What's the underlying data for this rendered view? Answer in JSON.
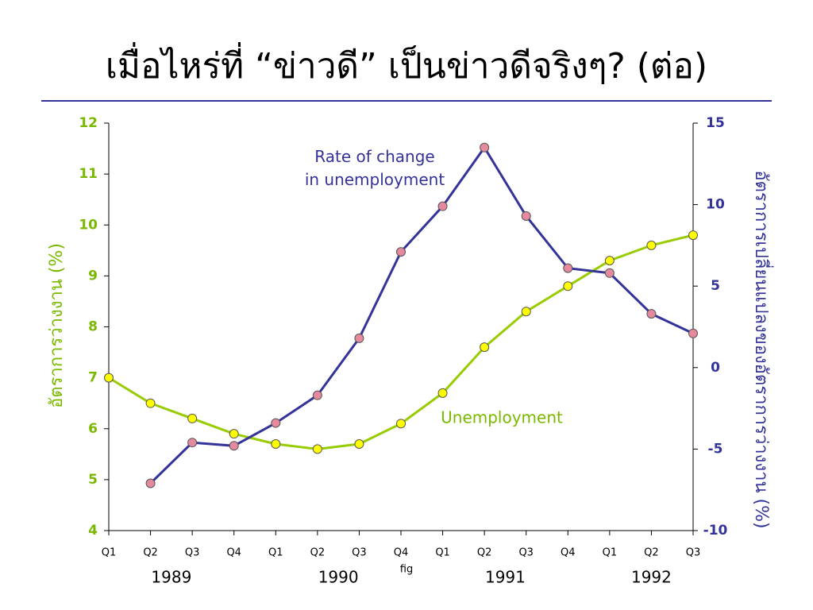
{
  "chart_data": {
    "type": "line",
    "title": "เมื่อไหร่ที่ “ข่าวดี” เป็นข่าวดีจริงๆ? (ต่อ)",
    "categories": [
      "Q1",
      "Q2",
      "Q3",
      "Q4",
      "Q1",
      "Q2",
      "Q3",
      "Q4",
      "Q1",
      "Q2",
      "Q3",
      "Q4",
      "Q1",
      "Q2",
      "Q3"
    ],
    "years": [
      "1989",
      "1990",
      "1991",
      "1992"
    ],
    "caption": "fig",
    "y_label": "อัตราการว่างงาน (%)",
    "y2_label": "อัตราการเปลี่ยนแปลงของอัตราการว่างงาน (%)",
    "ylim": [
      4,
      12
    ],
    "yticks": [
      4,
      5,
      6,
      7,
      8,
      9,
      10,
      11,
      12
    ],
    "y2lim": [
      -10,
      15
    ],
    "y2ticks": [
      -10,
      -5,
      0,
      5,
      10,
      15
    ],
    "series": [
      {
        "name": "Unemployment",
        "color": "#99cc00",
        "marker_color": "#ffff00",
        "values": [
          7.0,
          6.5,
          6.2,
          5.9,
          5.7,
          5.6,
          5.7,
          6.1,
          6.7,
          7.6,
          8.3,
          8.8,
          9.3,
          9.6,
          9.8
        ]
      },
      {
        "name": "Rate of change in unemployment",
        "color": "#333399",
        "marker_color": "#e4899e",
        "axis": "y2",
        "values": [
          null,
          -7.1,
          -4.6,
          -4.8,
          -3.4,
          -1.7,
          1.8,
          7.1,
          9.9,
          13.5,
          9.3,
          6.1,
          5.8,
          3.3,
          2.1
        ]
      }
    ]
  }
}
